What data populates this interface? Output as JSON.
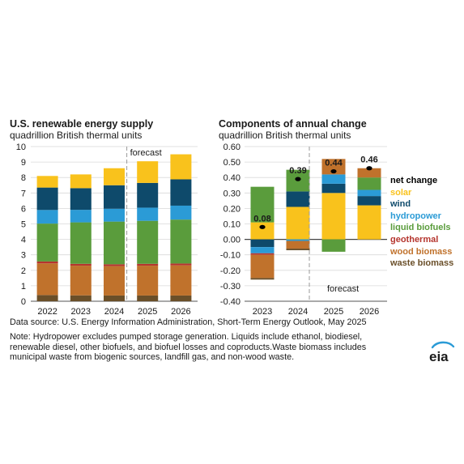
{
  "colors": {
    "solar": "#f9c21c",
    "wind": "#0e4a6b",
    "hydropower": "#2b9bd6",
    "liquid_biofuels": "#5a9c3c",
    "geothermal": "#b5352e",
    "wood_biomass": "#c0722c",
    "waste_biomass": "#6a4f29",
    "net_change": "#000000"
  },
  "chart_data": [
    {
      "type": "bar",
      "title": "U.S. renewable energy supply",
      "subtitle": "quadrillion British thermal units",
      "categories": [
        "2022",
        "2023",
        "2024",
        "2025",
        "2026"
      ],
      "ylim": [
        0,
        10
      ],
      "yticks": [
        "0",
        "1",
        "2",
        "3",
        "4",
        "5",
        "6",
        "7",
        "8",
        "9",
        "10"
      ],
      "annotation": "forecast",
      "series": [
        {
          "name": "waste biomass",
          "values": [
            0.4,
            0.38,
            0.37,
            0.37,
            0.37
          ]
        },
        {
          "name": "wood biomass",
          "values": [
            2.05,
            1.92,
            1.9,
            1.93,
            1.95
          ]
        },
        {
          "name": "geothermal",
          "values": [
            0.12,
            0.12,
            0.12,
            0.12,
            0.12
          ]
        },
        {
          "name": "liquid biofuels",
          "values": [
            2.45,
            2.68,
            2.76,
            2.78,
            2.84
          ]
        },
        {
          "name": "hydropower",
          "values": [
            0.88,
            0.81,
            0.83,
            0.85,
            0.9
          ]
        },
        {
          "name": "wind",
          "values": [
            1.45,
            1.4,
            1.52,
            1.6,
            1.7
          ]
        },
        {
          "name": "solar",
          "values": [
            0.75,
            0.89,
            1.1,
            1.4,
            1.62
          ]
        }
      ]
    },
    {
      "type": "bar",
      "title": "Components of annual change",
      "subtitle": "quadrillion British thermal units",
      "categories": [
        "2023",
        "2024",
        "2025",
        "2026"
      ],
      "ylim": [
        -0.4,
        0.6
      ],
      "yticks": [
        "0.60",
        "0.50",
        "0.40",
        "0.30",
        "0.20",
        "0.10",
        "0.00",
        "-0.10",
        "-0.20",
        "-0.30",
        "-0.40"
      ],
      "annotation": "forecast",
      "net_change": {
        "name": "net change",
        "values": [
          0.08,
          0.39,
          0.44,
          0.46
        ],
        "labels": [
          "0.08",
          "0.39",
          "0.44",
          "0.46"
        ]
      },
      "series": [
        {
          "name": "solar",
          "values": [
            0.11,
            0.21,
            0.3,
            0.22
          ]
        },
        {
          "name": "wind",
          "values": [
            -0.05,
            0.1,
            0.06,
            0.06
          ]
        },
        {
          "name": "hydropower",
          "values": [
            -0.04,
            -0.01,
            0.06,
            0.04
          ]
        },
        {
          "name": "liquid biofuels",
          "values": [
            0.23,
            0.14,
            -0.08,
            0.08
          ]
        },
        {
          "name": "geothermal",
          "values": [
            -0.01,
            0.0,
            0.0,
            0.0
          ]
        },
        {
          "name": "wood biomass",
          "values": [
            -0.15,
            -0.05,
            0.1,
            0.06
          ]
        },
        {
          "name": "waste biomass",
          "values": [
            -0.01,
            -0.01,
            0.0,
            0.0
          ]
        }
      ]
    }
  ],
  "legend": [
    "net change",
    "solar",
    "wind",
    "hydropower",
    "liquid biofuels",
    "geothermal",
    "wood biomass",
    "waste biomass"
  ],
  "source": "Data source: U.S. Energy Information Administration, Short-Term Energy Outlook, May 2025",
  "note_lines": [
    "Note: Hydropower excludes pumped storage generation. Liquids include ethanol, biodiesel,",
    "renewable diesel, other biofuels, and biofuel losses and coproducts.Waste biomass includes",
    "municipal waste from biogenic sources, landfill gas, and non-wood waste."
  ],
  "logo": "eia"
}
